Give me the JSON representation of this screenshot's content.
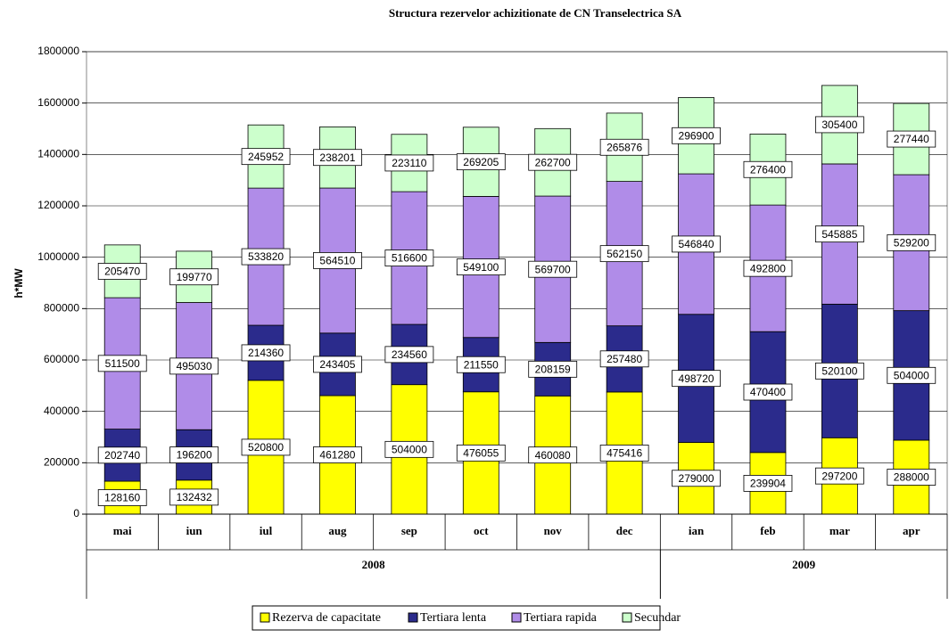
{
  "chart_data": {
    "type": "stacked-bar",
    "title": "Structura rezervelor achizitionate de CN Transelectrica SA",
    "y_label": "h*MW",
    "categories": [
      "mai",
      "iun",
      "iul",
      "aug",
      "sep",
      "oct",
      "nov",
      "dec",
      "ian",
      "feb",
      "mar",
      "apr"
    ],
    "years": [
      "2008",
      "2008",
      "2008",
      "2008",
      "2008",
      "2008",
      "2008",
      "2008",
      "2009",
      "2009",
      "2009",
      "2009"
    ],
    "series": [
      {
        "name": "Rezerva de capacitate",
        "color": "#ffff00",
        "values": [
          128160,
          132432,
          520800,
          461280,
          504000,
          476055,
          460080,
          475416,
          279000,
          239904,
          297200,
          288000
        ]
      },
      {
        "name": "Tertiara lenta",
        "color": "#2b2b8c",
        "values": [
          202740,
          196200,
          214360,
          243405,
          234560,
          211550,
          208159,
          257480,
          498720,
          470400,
          520100,
          504000
        ]
      },
      {
        "name": "Tertiara rapida",
        "color": "#b08ce8",
        "values": [
          511500,
          495030,
          533820,
          564510,
          516600,
          549100,
          569700,
          562150,
          546840,
          492800,
          545885,
          529200
        ]
      },
      {
        "name": "Secundar",
        "color": "#ccffcc",
        "values": [
          205470,
          199770,
          245952,
          238201,
          223110,
          269205,
          262700,
          265876,
          296900,
          276400,
          305400,
          277440
        ]
      }
    ],
    "ylim": [
      0,
      1800000
    ],
    "yticks": [
      0,
      200000,
      400000,
      600000,
      800000,
      1000000,
      1200000,
      1400000,
      1600000,
      1800000
    ],
    "grid": true,
    "legend": "bottom"
  }
}
